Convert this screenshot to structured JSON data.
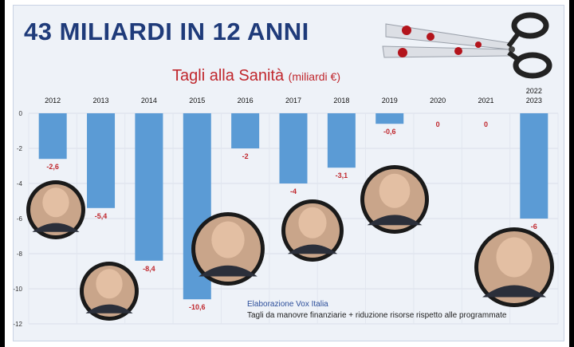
{
  "header": {
    "title": "43 MILIARDI IN 12 ANNI",
    "subtitle": "Tagli alla Sanità",
    "subtitle_unit": "(miliardi €)"
  },
  "footer": {
    "source": "Elaborazione Vox Italia",
    "note": "Tagli da manovre finanziarie + riduzione risorse rispetto alle programmate"
  },
  "colors": {
    "bar": "#5b9bd5",
    "label": "#c0272d",
    "title": "#1f3b7a"
  },
  "decorations": [
    "scissors-icon",
    "portrait-photo",
    "portrait-photo",
    "portrait-photo",
    "portrait-photo",
    "portrait-photo",
    "portrait-photo"
  ],
  "chart_data": {
    "type": "bar",
    "categories": [
      "2012",
      "2013",
      "2014",
      "2015",
      "2016",
      "2017",
      "2018",
      "2019",
      "2020",
      "2021",
      "2022\n2023"
    ],
    "values": [
      -2.6,
      -5.4,
      -8.4,
      -10.6,
      -2,
      -4,
      -3.1,
      -0.6,
      0,
      0,
      -6
    ],
    "value_labels": [
      "-2,6",
      "-5,4",
      "-8,4",
      "-10,6",
      "-2",
      "-4",
      "-3,1",
      "-0,6",
      "0",
      "0",
      "-6"
    ],
    "yticks": [
      "0",
      "-2",
      "-4",
      "-6",
      "-8",
      "-10",
      "-12"
    ],
    "ylim": [
      -12,
      0
    ],
    "grid": true,
    "legend": "none"
  }
}
